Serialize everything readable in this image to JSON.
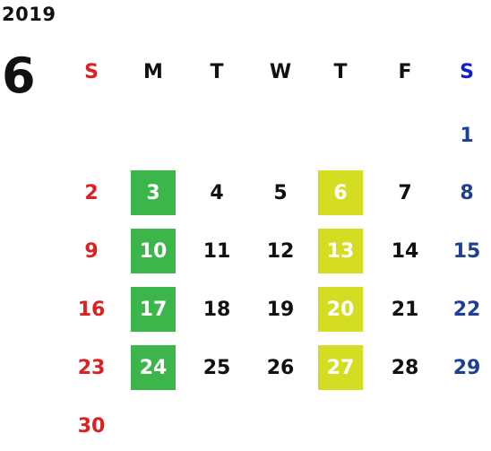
{
  "calendar": {
    "year": "2019",
    "month": "6",
    "weekdays": [
      {
        "label": "S",
        "color": "#e02020"
      },
      {
        "label": "M",
        "color": "#111111"
      },
      {
        "label": "T",
        "color": "#111111"
      },
      {
        "label": "W",
        "color": "#111111"
      },
      {
        "label": "T",
        "color": "#111111"
      },
      {
        "label": "F",
        "color": "#111111"
      },
      {
        "label": "S",
        "color": "#0a1fd6"
      }
    ],
    "weeks": [
      [
        "",
        "",
        "",
        "",
        "",
        "",
        "1"
      ],
      [
        "2",
        "3",
        "4",
        "5",
        "6",
        "7",
        "8"
      ],
      [
        "9",
        "10",
        "11",
        "12",
        "13",
        "14",
        "15"
      ],
      [
        "16",
        "17",
        "18",
        "19",
        "20",
        "21",
        "22"
      ],
      [
        "23",
        "24",
        "25",
        "26",
        "27",
        "28",
        "29"
      ],
      [
        "30",
        "",
        "",
        "",
        "",
        "",
        ""
      ]
    ],
    "colors": {
      "sunday": "#e02020",
      "saturday": "#1e3f97",
      "weekday": "#111111",
      "highlight_text": "#ffffff"
    },
    "highlights": {
      "monday": {
        "color": "#3cb54a",
        "days": [
          "3",
          "10",
          "17",
          "24"
        ]
      },
      "thursday": {
        "color": "#d4dd22",
        "days": [
          "6",
          "13",
          "20",
          "27"
        ]
      }
    }
  }
}
